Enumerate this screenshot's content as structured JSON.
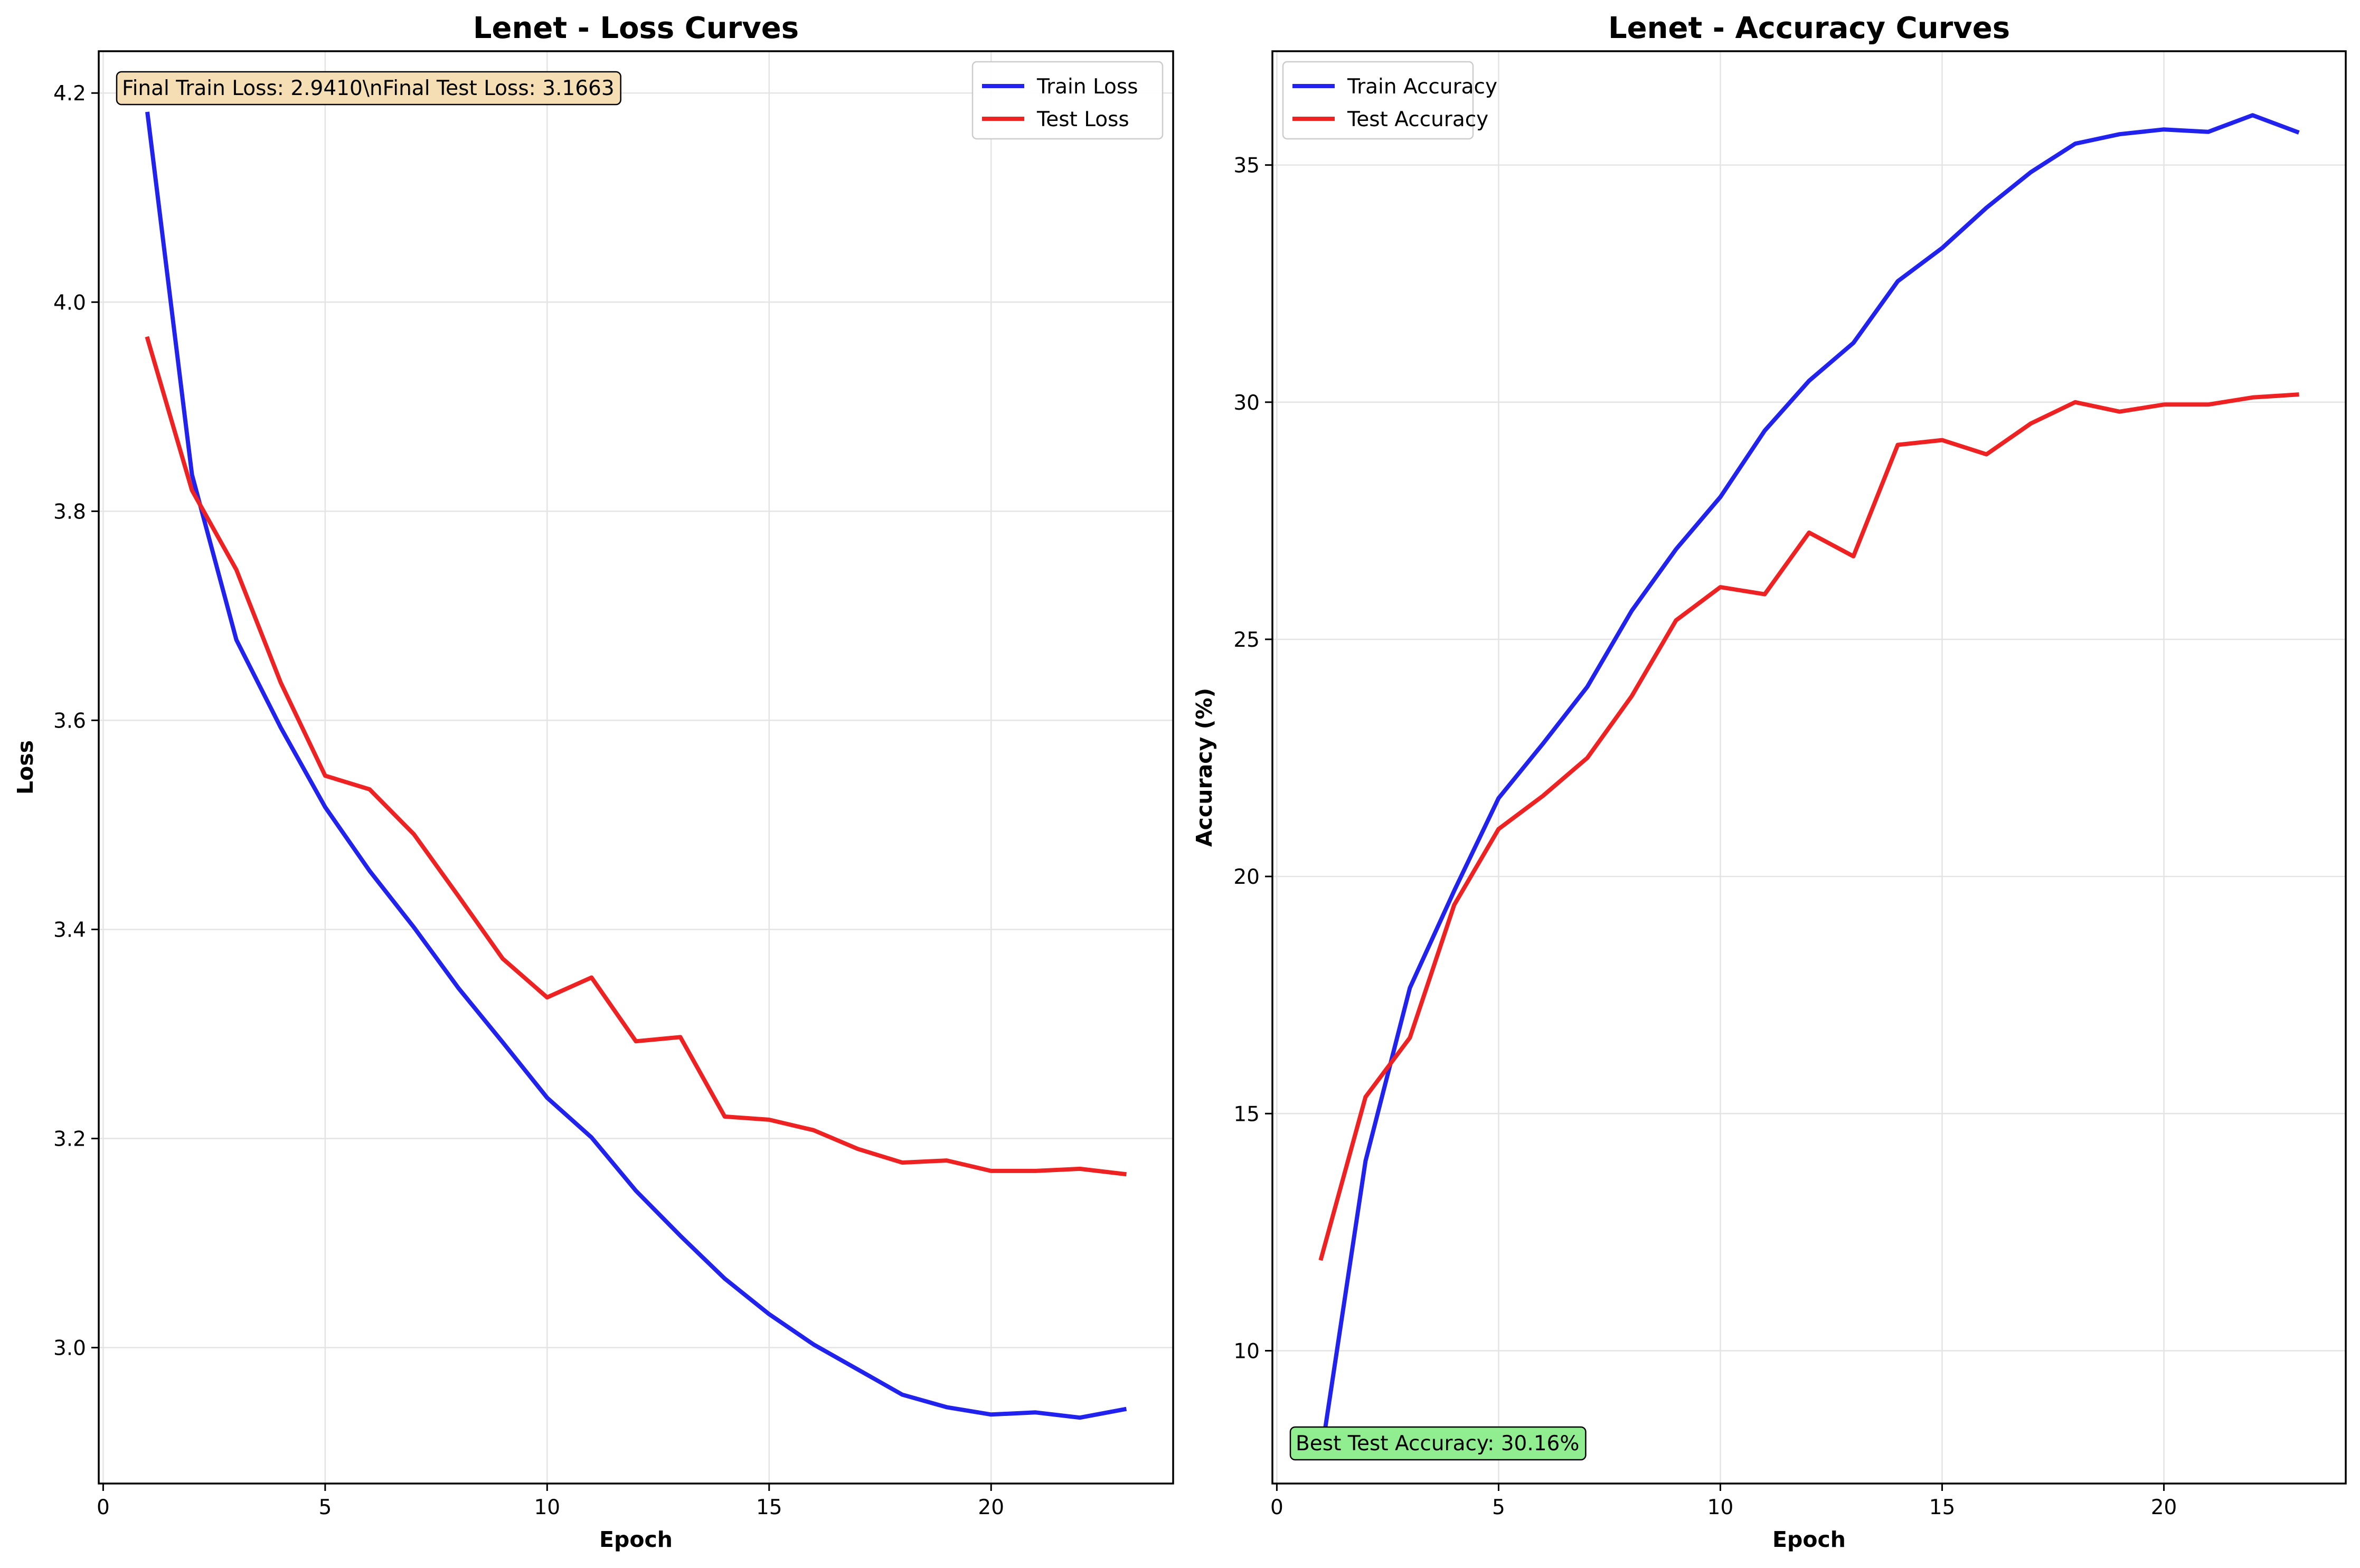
{
  "chart_data": [
    {
      "type": "line",
      "title": "Lenet - Loss Curves",
      "xlabel": "Epoch",
      "ylabel": "Loss",
      "xlim": [
        -0.1,
        24.1
      ],
      "ylim": [
        2.87,
        4.24
      ],
      "xticks": [
        0,
        5,
        10,
        15,
        20
      ],
      "yticks": [
        3.0,
        3.2,
        3.4,
        3.6,
        3.8,
        4.0,
        4.2
      ],
      "xtick_labels": [
        "0",
        "5",
        "10",
        "15",
        "20"
      ],
      "ytick_labels": [
        "3.0",
        "3.2",
        "3.4",
        "3.6",
        "3.8",
        "4.0",
        "4.2"
      ],
      "grid": true,
      "legend_position": "top-right",
      "x": [
        1,
        2,
        3,
        4,
        5,
        6,
        7,
        8,
        9,
        10,
        11,
        12,
        13,
        14,
        15,
        16,
        17,
        18,
        19,
        20,
        21,
        22,
        23
      ],
      "series": [
        {
          "name": "Train Loss",
          "color": "#2222ee",
          "values": [
            4.18,
            3.835,
            3.677,
            3.593,
            3.517,
            3.456,
            3.402,
            3.344,
            3.292,
            3.239,
            3.201,
            3.15,
            3.107,
            3.066,
            3.032,
            3.003,
            2.979,
            2.955,
            2.943,
            2.936,
            2.938,
            2.933,
            2.941
          ]
        },
        {
          "name": "Test Loss",
          "color": "#ee2222",
          "values": [
            3.965,
            3.82,
            3.744,
            3.636,
            3.547,
            3.534,
            3.491,
            3.432,
            3.372,
            3.335,
            3.354,
            3.293,
            3.297,
            3.221,
            3.218,
            3.208,
            3.19,
            3.177,
            3.179,
            3.169,
            3.169,
            3.171,
            3.166
          ]
        }
      ],
      "annotation": {
        "text": "Final Train Loss: 2.9410\\nFinal Test Loss: 3.1663",
        "position": "top-left",
        "background": "#f5deb3"
      }
    },
    {
      "type": "line",
      "title": "Lenet - Accuracy Curves",
      "xlabel": "Epoch",
      "ylabel": "Accuracy (%)",
      "xlim": [
        -0.1,
        24.1
      ],
      "ylim": [
        7.2,
        37.4
      ],
      "xticks": [
        0,
        5,
        10,
        15,
        20
      ],
      "yticks": [
        10,
        15,
        20,
        25,
        30,
        35
      ],
      "xtick_labels": [
        "0",
        "5",
        "10",
        "15",
        "20"
      ],
      "ytick_labels": [
        "10",
        "15",
        "20",
        "25",
        "30",
        "35"
      ],
      "grid": true,
      "legend_position": "top-left",
      "x": [
        1,
        2,
        3,
        4,
        5,
        6,
        7,
        8,
        9,
        10,
        11,
        12,
        13,
        14,
        15,
        16,
        17,
        18,
        19,
        20,
        21,
        22,
        23
      ],
      "series": [
        {
          "name": "Train Accuracy",
          "color": "#2222ee",
          "values": [
            7.8,
            14.0,
            17.65,
            19.7,
            21.65,
            22.8,
            24.0,
            25.6,
            26.9,
            28.0,
            29.4,
            30.45,
            31.25,
            32.55,
            33.25,
            34.1,
            34.85,
            35.45,
            35.65,
            35.75,
            35.7,
            36.05,
            35.7
          ]
        },
        {
          "name": "Test Accuracy",
          "color": "#ee2222",
          "values": [
            11.95,
            15.35,
            16.6,
            19.4,
            21.0,
            21.7,
            22.5,
            23.8,
            25.4,
            26.1,
            25.95,
            27.25,
            26.75,
            29.1,
            29.2,
            28.9,
            29.55,
            30.0,
            29.8,
            29.95,
            29.95,
            30.1,
            30.16
          ]
        }
      ],
      "annotation": {
        "text": "Best Test Accuracy: 30.16%",
        "position": "bottom-left",
        "background": "#90ee90"
      }
    }
  ]
}
